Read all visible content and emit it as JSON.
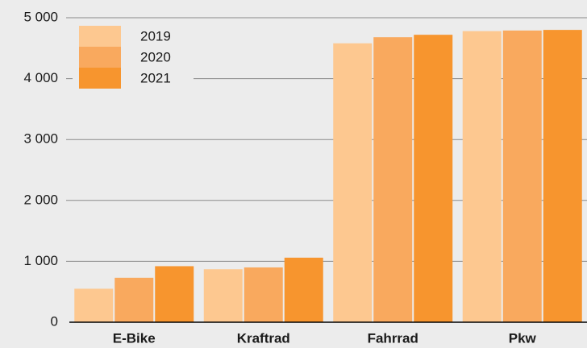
{
  "chart_data": {
    "type": "bar",
    "categories": [
      "E-Bike",
      "Kraftrad",
      "Fahrrad",
      "Pkw"
    ],
    "series": [
      {
        "name": "2019",
        "color": "#fdc890",
        "values": [
          550,
          870,
          4580,
          4780
        ]
      },
      {
        "name": "2020",
        "color": "#f9a95e",
        "values": [
          730,
          900,
          4680,
          4790
        ]
      },
      {
        "name": "2021",
        "color": "#f7952e",
        "values": [
          920,
          1060,
          4720,
          4800
        ]
      }
    ],
    "ylim": [
      0,
      5000
    ],
    "yticks": [
      0,
      {
        "value": 1000,
        "label": "1 000"
      },
      {
        "value": 2000,
        "label": "2 000"
      },
      {
        "value": 3000,
        "label": "3 000"
      },
      {
        "value": 4000,
        "label": "4 000"
      },
      {
        "value": 5000,
        "label": "5 000"
      }
    ],
    "grid": true,
    "legend": "upper left"
  }
}
